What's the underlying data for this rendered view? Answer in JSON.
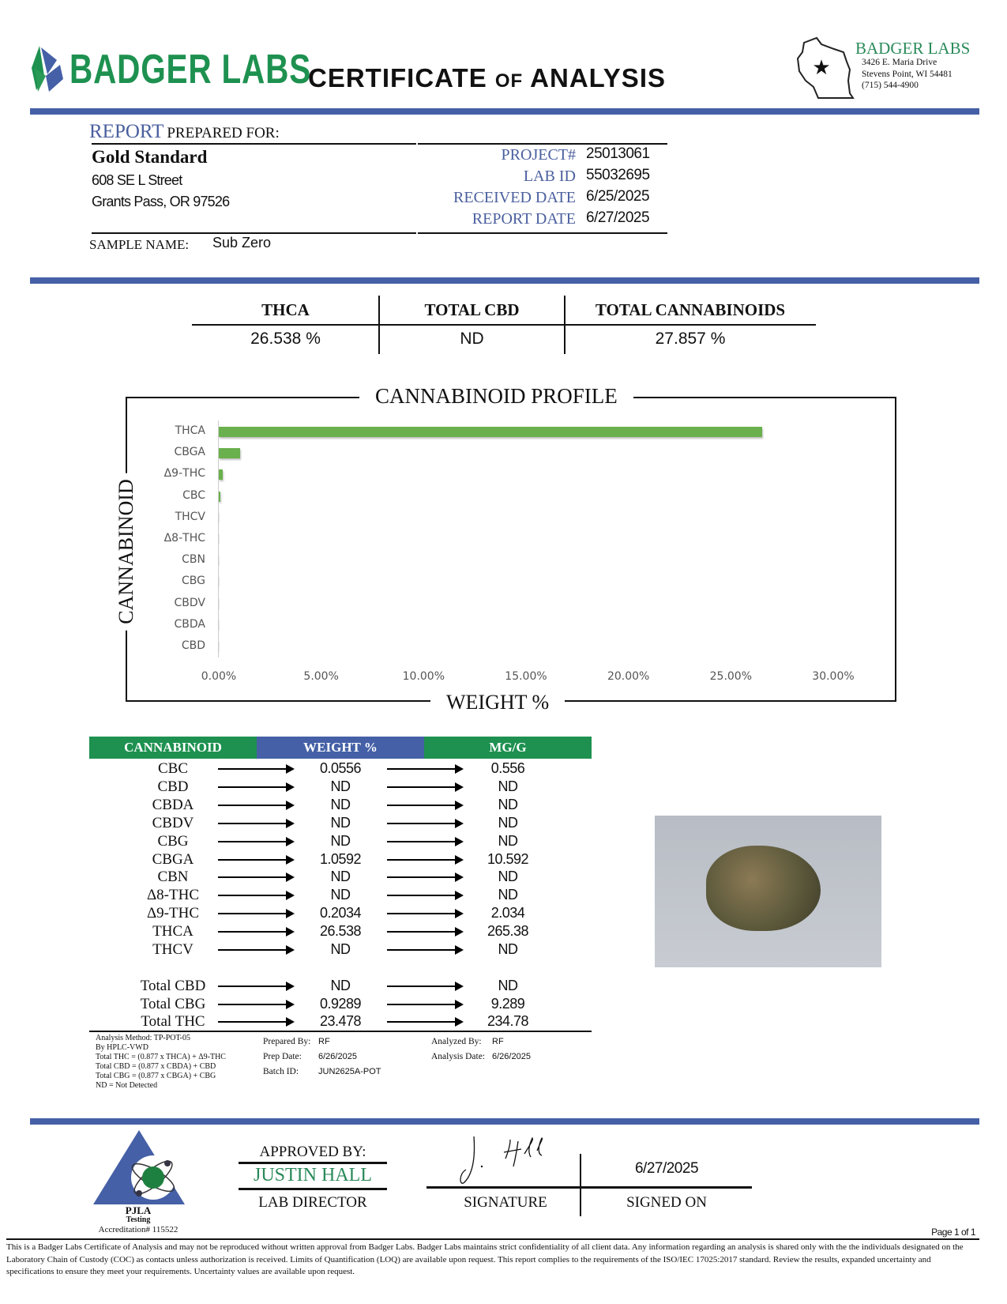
{
  "header": {
    "logo_text": "BADGER LABS",
    "title_part1": "CERTIFICATE",
    "title_of": "OF",
    "title_part2": "ANALYSIS",
    "lab_name": "BADGER LABS",
    "address1": "3426 E. Maria Drive",
    "address2": "Stevens Point, WI 54481",
    "phone": "(715) 544-4900"
  },
  "client": {
    "report_label": "REPORT",
    "prepared_for": "PREPARED FOR:",
    "name": "Gold Standard",
    "street": "608 SE L Street",
    "city": "Grants Pass, OR 97526",
    "sample_label": "SAMPLE NAME:",
    "sample_name": "Sub Zero"
  },
  "info": [
    {
      "label": "PROJECT#",
      "value": "25013061"
    },
    {
      "label": "LAB ID",
      "value": "55032695"
    },
    {
      "label": "RECEIVED DATE",
      "value": "6/25/2025"
    },
    {
      "label": "REPORT DATE",
      "value": "6/27/2025"
    }
  ],
  "summary": [
    {
      "label": "THCA",
      "value": "26.538 %"
    },
    {
      "label": "TOTAL CBD",
      "value": "ND"
    },
    {
      "label": "TOTAL CANNABINOIDS",
      "value": "27.857 %"
    }
  ],
  "chart_data": {
    "type": "bar",
    "orientation": "horizontal",
    "title": "CANNABINOID PROFILE",
    "xlabel": "WEIGHT %",
    "ylabel": "CANNABINOID",
    "categories": [
      "THCA",
      "CBGA",
      "Δ9-THC",
      "CBC",
      "THCV",
      "Δ8-THC",
      "CBN",
      "CBG",
      "CBDV",
      "CBDA",
      "CBD"
    ],
    "values": [
      26.538,
      1.0592,
      0.2034,
      0.0556,
      0,
      0,
      0,
      0,
      0,
      0,
      0
    ],
    "xlim": [
      0,
      30
    ],
    "xticks": [
      "0.00%",
      "5.00%",
      "10.00%",
      "15.00%",
      "20.00%",
      "25.00%",
      "30.00%"
    ],
    "bar_color": "#6ab04c",
    "grid": false
  },
  "table": {
    "headers": [
      "CANNABINOID",
      "WEIGHT %",
      "MG/G"
    ],
    "header_colors": [
      "#1e9150",
      "#4560a6",
      "#1e9150"
    ],
    "rows": [
      [
        "CBC",
        "0.0556",
        "0.556"
      ],
      [
        "CBD",
        "ND",
        "ND"
      ],
      [
        "CBDA",
        "ND",
        "ND"
      ],
      [
        "CBDV",
        "ND",
        "ND"
      ],
      [
        "CBG",
        "ND",
        "ND"
      ],
      [
        "CBGA",
        "1.0592",
        "10.592"
      ],
      [
        "CBN",
        "ND",
        "ND"
      ],
      [
        "Δ8-THC",
        "ND",
        "ND"
      ],
      [
        "Δ9-THC",
        "0.2034",
        "2.034"
      ],
      [
        "THCA",
        "26.538",
        "265.38"
      ],
      [
        "THCV",
        "ND",
        "ND"
      ]
    ],
    "totals": [
      [
        "Total CBD",
        "ND",
        "ND"
      ],
      [
        "Total CBG",
        "0.9289",
        "9.289"
      ],
      [
        "Total THC",
        "23.478",
        "234.78"
      ]
    ]
  },
  "notes": {
    "method": [
      "Analysis Method: TP-POT-05",
      "By HPLC-VWD",
      "Total THC = (0.877 x  THCA) + Δ9-THC",
      "Total CBD = (0.877 x  CBDA) + CBD",
      "Total CBG = (0.877 x  CBGA) + CBG",
      "ND = Not Detected"
    ],
    "prepared_by_label": "Prepared By:",
    "prepared_by": "RF",
    "prep_date_label": "Prep Date:",
    "prep_date": "6/26/2025",
    "batch_label": "Batch ID:",
    "batch": "JUN2625A-POT",
    "analyzed_by_label": "Analyzed By:",
    "analyzed_by": "RF",
    "analysis_date_label": "Analysis Date:",
    "analysis_date": "6/26/2025"
  },
  "footer": {
    "pjla": "PJLA",
    "pjla_sub": "Testing",
    "accreditation": "Accreditation# 115522",
    "approved_by": "APPROVED BY:",
    "approver": "JUSTIN HALL",
    "approver_title": "LAB DIRECTOR",
    "signature_label": "SIGNATURE",
    "signed_on_label": "SIGNED ON",
    "signed_date": "6/27/2025",
    "page": "Page 1 of 1",
    "disclaimer": "This is a Badger Labs Certificate of Analysis and may not be reproduced without written approval from Badger Labs. Badger Labs maintains strict confidentiality of all client data. Any information regarding an analysis is shared only with the the individuals designated on the Laboratory Chain of Custody (COC) as contacts unless authorization is received. Limits of Quantification (LOQ) are available upon request. This report complies to the requirements of the ISO/IEC 17025:2017 standard. Review the results, expanded uncertainty and specifications to ensure they meet your requirements. Uncertainty values are available upon request."
  }
}
